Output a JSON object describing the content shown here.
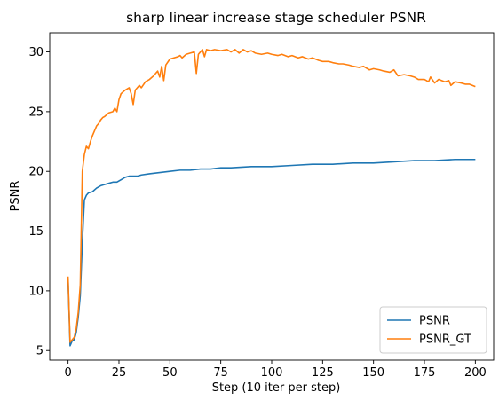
{
  "chart_data": {
    "type": "line",
    "title": "sharp linear increase stage scheduler PSNR",
    "xlabel": "Step (10 iter per step)",
    "ylabel": "PSNR",
    "xlim": [
      -9,
      209
    ],
    "ylim": [
      4.2,
      31.6
    ],
    "x_ticks": [
      0,
      25,
      50,
      75,
      100,
      125,
      150,
      175,
      200
    ],
    "y_ticks": [
      5,
      10,
      15,
      20,
      25,
      30
    ],
    "grid": false,
    "legend_position": "lower-right",
    "series": [
      {
        "name": "PSNR",
        "color": "#1f77b4",
        "points": [
          [
            0,
            10.9
          ],
          [
            1,
            5.4
          ],
          [
            2,
            5.8
          ],
          [
            3,
            5.9
          ],
          [
            4,
            6.5
          ],
          [
            5,
            7.8
          ],
          [
            6,
            9.6
          ],
          [
            7,
            14.0
          ],
          [
            8,
            17.6
          ],
          [
            9,
            18.0
          ],
          [
            10,
            18.2
          ],
          [
            12,
            18.3
          ],
          [
            14,
            18.6
          ],
          [
            16,
            18.8
          ],
          [
            18,
            18.9
          ],
          [
            20,
            19.0
          ],
          [
            22,
            19.1
          ],
          [
            24,
            19.1
          ],
          [
            26,
            19.3
          ],
          [
            28,
            19.5
          ],
          [
            30,
            19.6
          ],
          [
            32,
            19.6
          ],
          [
            34,
            19.6
          ],
          [
            36,
            19.7
          ],
          [
            40,
            19.8
          ],
          [
            45,
            19.9
          ],
          [
            50,
            20.0
          ],
          [
            55,
            20.1
          ],
          [
            60,
            20.1
          ],
          [
            65,
            20.2
          ],
          [
            70,
            20.2
          ],
          [
            75,
            20.3
          ],
          [
            80,
            20.3
          ],
          [
            90,
            20.4
          ],
          [
            100,
            20.4
          ],
          [
            110,
            20.5
          ],
          [
            120,
            20.6
          ],
          [
            130,
            20.6
          ],
          [
            140,
            20.7
          ],
          [
            150,
            20.7
          ],
          [
            160,
            20.8
          ],
          [
            170,
            20.9
          ],
          [
            180,
            20.9
          ],
          [
            190,
            21.0
          ],
          [
            200,
            21.0
          ]
        ]
      },
      {
        "name": "PSNR_GT",
        "color": "#ff7f0e",
        "points": [
          [
            0,
            11.2
          ],
          [
            1,
            5.7
          ],
          [
            2,
            5.9
          ],
          [
            3,
            6.1
          ],
          [
            4,
            6.8
          ],
          [
            5,
            8.2
          ],
          [
            6,
            10.5
          ],
          [
            7,
            20.0
          ],
          [
            8,
            21.4
          ],
          [
            9,
            22.1
          ],
          [
            10,
            21.9
          ],
          [
            11,
            22.5
          ],
          [
            12,
            23.0
          ],
          [
            13,
            23.4
          ],
          [
            14,
            23.8
          ],
          [
            15,
            24.0
          ],
          [
            16,
            24.3
          ],
          [
            17,
            24.5
          ],
          [
            18,
            24.6
          ],
          [
            20,
            24.9
          ],
          [
            22,
            25.0
          ],
          [
            23,
            25.3
          ],
          [
            24,
            25.0
          ],
          [
            25,
            26.0
          ],
          [
            26,
            26.5
          ],
          [
            28,
            26.8
          ],
          [
            30,
            27.0
          ],
          [
            31,
            26.5
          ],
          [
            32,
            25.6
          ],
          [
            33,
            26.8
          ],
          [
            35,
            27.2
          ],
          [
            36,
            27.0
          ],
          [
            38,
            27.5
          ],
          [
            40,
            27.7
          ],
          [
            42,
            28.0
          ],
          [
            44,
            28.4
          ],
          [
            45,
            27.9
          ],
          [
            46,
            28.8
          ],
          [
            47,
            27.6
          ],
          [
            48,
            28.9
          ],
          [
            50,
            29.4
          ],
          [
            52,
            29.5
          ],
          [
            54,
            29.6
          ],
          [
            55,
            29.7
          ],
          [
            56,
            29.5
          ],
          [
            58,
            29.8
          ],
          [
            60,
            29.9
          ],
          [
            62,
            30.0
          ],
          [
            63,
            28.2
          ],
          [
            64,
            29.8
          ],
          [
            65,
            30.0
          ],
          [
            66,
            30.2
          ],
          [
            67,
            29.6
          ],
          [
            68,
            30.2
          ],
          [
            70,
            30.1
          ],
          [
            72,
            30.2
          ],
          [
            75,
            30.1
          ],
          [
            78,
            30.2
          ],
          [
            80,
            30.0
          ],
          [
            82,
            30.2
          ],
          [
            84,
            29.9
          ],
          [
            86,
            30.2
          ],
          [
            88,
            30.0
          ],
          [
            90,
            30.1
          ],
          [
            92,
            29.9
          ],
          [
            95,
            29.8
          ],
          [
            98,
            29.9
          ],
          [
            100,
            29.8
          ],
          [
            103,
            29.7
          ],
          [
            105,
            29.8
          ],
          [
            108,
            29.6
          ],
          [
            110,
            29.7
          ],
          [
            113,
            29.5
          ],
          [
            115,
            29.6
          ],
          [
            118,
            29.4
          ],
          [
            120,
            29.5
          ],
          [
            123,
            29.3
          ],
          [
            125,
            29.2
          ],
          [
            128,
            29.2
          ],
          [
            130,
            29.1
          ],
          [
            133,
            29.0
          ],
          [
            135,
            29.0
          ],
          [
            138,
            28.9
          ],
          [
            140,
            28.8
          ],
          [
            143,
            28.7
          ],
          [
            145,
            28.8
          ],
          [
            148,
            28.5
          ],
          [
            150,
            28.6
          ],
          [
            153,
            28.5
          ],
          [
            155,
            28.4
          ],
          [
            158,
            28.3
          ],
          [
            160,
            28.5
          ],
          [
            162,
            28.0
          ],
          [
            165,
            28.1
          ],
          [
            168,
            28.0
          ],
          [
            170,
            27.9
          ],
          [
            172,
            27.7
          ],
          [
            175,
            27.7
          ],
          [
            177,
            27.5
          ],
          [
            178,
            27.9
          ],
          [
            180,
            27.4
          ],
          [
            182,
            27.7
          ],
          [
            185,
            27.5
          ],
          [
            187,
            27.6
          ],
          [
            188,
            27.2
          ],
          [
            190,
            27.5
          ],
          [
            193,
            27.4
          ],
          [
            195,
            27.3
          ],
          [
            197,
            27.3
          ],
          [
            200,
            27.1
          ]
        ]
      }
    ]
  }
}
